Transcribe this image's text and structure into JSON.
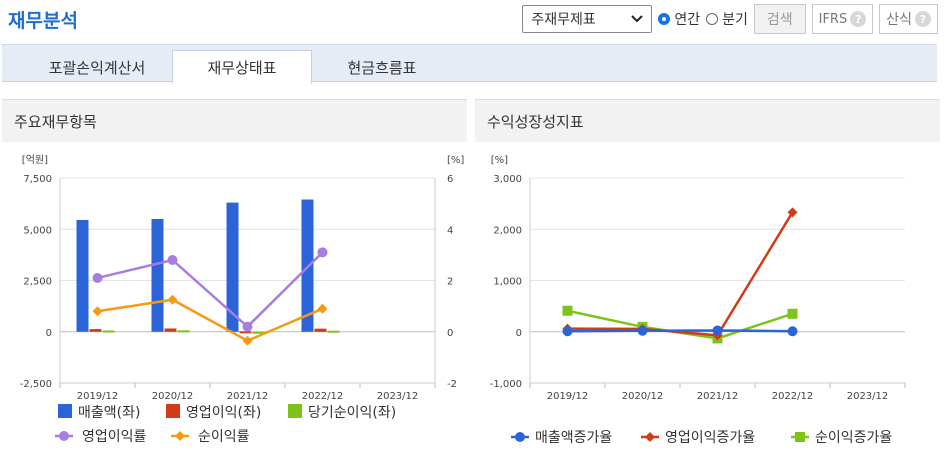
{
  "header": {
    "title": "재무분석"
  },
  "controls": {
    "select_value": "주재무제표",
    "radio_annual": "연간",
    "radio_quarter": "분기",
    "search_label": "검색",
    "ifrs_label": "IFRS",
    "calc_label": "산식",
    "help_glyph": "?"
  },
  "tabs": [
    {
      "label": "포괄손익계산서"
    },
    {
      "label": "재무상태표"
    },
    {
      "label": "현금흐름표"
    }
  ],
  "panels": {
    "left_title": "주요재무항목",
    "right_title": "수익성장성지표"
  },
  "colors": {
    "brand": "#1c6fd0",
    "sales": "#2a64d8",
    "op": "#d23a1a",
    "net": "#7ec31a",
    "op_margin": "#a77ee0",
    "net_margin": "#f59a12"
  },
  "chart_data": [
    {
      "type": "bar",
      "categories": [
        "2019/12",
        "2020/12",
        "2021/12",
        "2022/12",
        "2023/12"
      ],
      "y_left_label": "[억원]",
      "y_right_label": "[%]",
      "y_left_ticks": [
        "7,500",
        "5,000",
        "2,500",
        "0",
        "-2,500"
      ],
      "y_right_ticks": [
        "6",
        "4",
        "2",
        "0",
        "-2"
      ],
      "ylim_left": [
        -2500,
        7500
      ],
      "ylim_right": [
        -2,
        6
      ],
      "series": [
        {
          "name": "매출액(좌)",
          "type": "bar",
          "axis": "left",
          "values": [
            5450,
            5500,
            6300,
            6450,
            null
          ]
        },
        {
          "name": "영업이익(좌)",
          "type": "bar",
          "axis": "left",
          "values": [
            130,
            160,
            20,
            150,
            null
          ]
        },
        {
          "name": "당기순이익(좌)",
          "type": "bar",
          "axis": "left",
          "values": [
            60,
            70,
            -50,
            50,
            null
          ]
        },
        {
          "name": "영업이익률",
          "type": "line",
          "axis": "right",
          "values": [
            2.1,
            2.8,
            0.2,
            3.1,
            null
          ]
        },
        {
          "name": "순이익률",
          "type": "line",
          "axis": "right",
          "values": [
            0.8,
            1.25,
            -0.35,
            0.9,
            null
          ]
        }
      ],
      "legend": "bottom",
      "grid": true
    },
    {
      "type": "line",
      "categories": [
        "2019/12",
        "2020/12",
        "2021/12",
        "2022/12",
        "2023/12"
      ],
      "y_label": "[%]",
      "y_ticks": [
        "3,000",
        "2,000",
        "1,000",
        "0",
        "-1,000"
      ],
      "ylim": [
        -1000,
        3000
      ],
      "series": [
        {
          "name": "매출액증가율",
          "values": [
            10,
            20,
            25,
            10,
            null
          ]
        },
        {
          "name": "영업이익증가율",
          "values": [
            60,
            55,
            -70,
            2330,
            null
          ]
        },
        {
          "name": "순이익증가율",
          "values": [
            410,
            95,
            -130,
            350,
            null
          ]
        }
      ],
      "legend": "bottom",
      "grid": true
    }
  ]
}
